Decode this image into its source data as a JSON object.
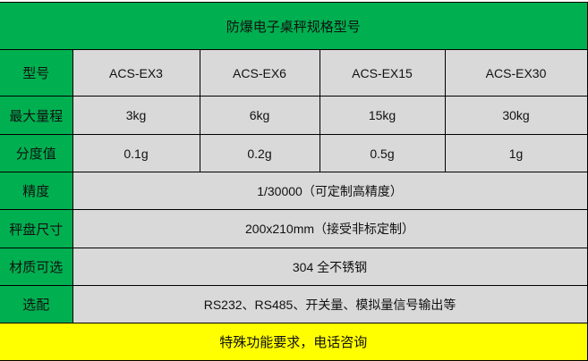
{
  "title": "防爆电子桌秤规格型号",
  "colors": {
    "header_green": "#00b050",
    "cell_gray": "#d9d9d9",
    "footer_yellow": "#ffff00"
  },
  "rows": [
    {
      "label": "型号",
      "values": [
        "ACS-EX3",
        "ACS-EX6",
        "ACS-EX15",
        "ACS-EX30"
      ]
    },
    {
      "label": "最大量程",
      "values": [
        "3kg",
        "6kg",
        "15kg",
        "30kg"
      ]
    },
    {
      "label": "分度值",
      "values": [
        "0.1g",
        "0.2g",
        "0.5g",
        "1g"
      ]
    },
    {
      "label": "精度",
      "merged": "1/30000（可定制高精度）"
    },
    {
      "label": "秤盘尺寸",
      "merged": "200x210mm（接受非标定制）"
    },
    {
      "label": "材质可选",
      "merged": "304 全不锈钢"
    },
    {
      "label": "选配",
      "merged": "RS232、RS485、开关量、模拟量信号输出等"
    }
  ],
  "footer": "特殊功能要求，电话咨询"
}
